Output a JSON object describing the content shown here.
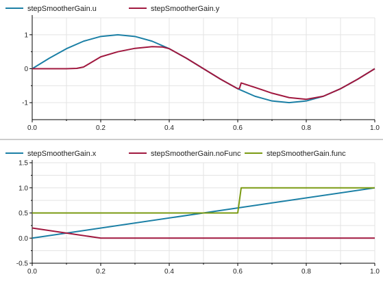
{
  "colors": {
    "blue": "#1a7fa5",
    "red": "#a0173e",
    "green": "#7a9a12",
    "grid": "#e3e3e3",
    "axis": "#000000",
    "divider": "#9a9a9a"
  },
  "chart_data": [
    {
      "type": "line",
      "grid": true,
      "legend_placement": "top-left",
      "xlim": [
        0,
        1
      ],
      "ylim": [
        -1.5,
        1.5
      ],
      "x_ticks": [
        "0.0",
        "0.2",
        "0.4",
        "0.6",
        "0.8",
        "1.0"
      ],
      "y_ticks": [
        "1",
        "0",
        "-1"
      ],
      "series": [
        {
          "name": "stepSmootherGain.u",
          "color": "#1a7fa5",
          "x": [
            0,
            0.05,
            0.1,
            0.15,
            0.2,
            0.25,
            0.3,
            0.35,
            0.4,
            0.45,
            0.5,
            0.55,
            0.6,
            0.65,
            0.7,
            0.75,
            0.8,
            0.85,
            0.9,
            0.95,
            1.0
          ],
          "y": [
            0,
            0.31,
            0.59,
            0.81,
            0.95,
            1.0,
            0.95,
            0.81,
            0.59,
            0.31,
            0,
            -0.31,
            -0.59,
            -0.81,
            -0.95,
            -1.0,
            -0.95,
            -0.81,
            -0.59,
            -0.31,
            0
          ]
        },
        {
          "name": "stepSmootherGain.y",
          "color": "#a0173e",
          "x": [
            0,
            0.1,
            0.13,
            0.15,
            0.2,
            0.25,
            0.3,
            0.35,
            0.38,
            0.4,
            0.45,
            0.5,
            0.55,
            0.6,
            0.605,
            0.61,
            0.65,
            0.7,
            0.75,
            0.8,
            0.85,
            0.9,
            0.95,
            1.0
          ],
          "y": [
            0,
            0,
            0.01,
            0.05,
            0.35,
            0.5,
            0.6,
            0.65,
            0.64,
            0.59,
            0.31,
            0,
            -0.31,
            -0.59,
            -0.58,
            -0.42,
            -0.55,
            -0.72,
            -0.85,
            -0.9,
            -0.81,
            -0.59,
            -0.31,
            0
          ]
        }
      ]
    },
    {
      "type": "line",
      "grid": true,
      "legend_placement": "top-left",
      "xlim": [
        0,
        1
      ],
      "ylim": [
        -0.5,
        1.5
      ],
      "x_ticks": [
        "0.0",
        "0.2",
        "0.4",
        "0.6",
        "0.8",
        "1.0"
      ],
      "y_ticks": [
        "1.5",
        "1.0",
        "0.5",
        "0.0",
        "-0.5"
      ],
      "series": [
        {
          "name": "stepSmootherGain.x",
          "color": "#1a7fa5",
          "x": [
            0,
            1
          ],
          "y": [
            0,
            1
          ]
        },
        {
          "name": "stepSmootherGain.noFunc",
          "color": "#a0173e",
          "x": [
            0,
            0.2,
            1.0
          ],
          "y": [
            0.2,
            0,
            0
          ]
        },
        {
          "name": "stepSmootherGain.func",
          "color": "#7a9a12",
          "x": [
            0,
            0.6,
            0.61,
            1.0
          ],
          "y": [
            0.5,
            0.5,
            1.0,
            1.0
          ]
        }
      ]
    }
  ]
}
